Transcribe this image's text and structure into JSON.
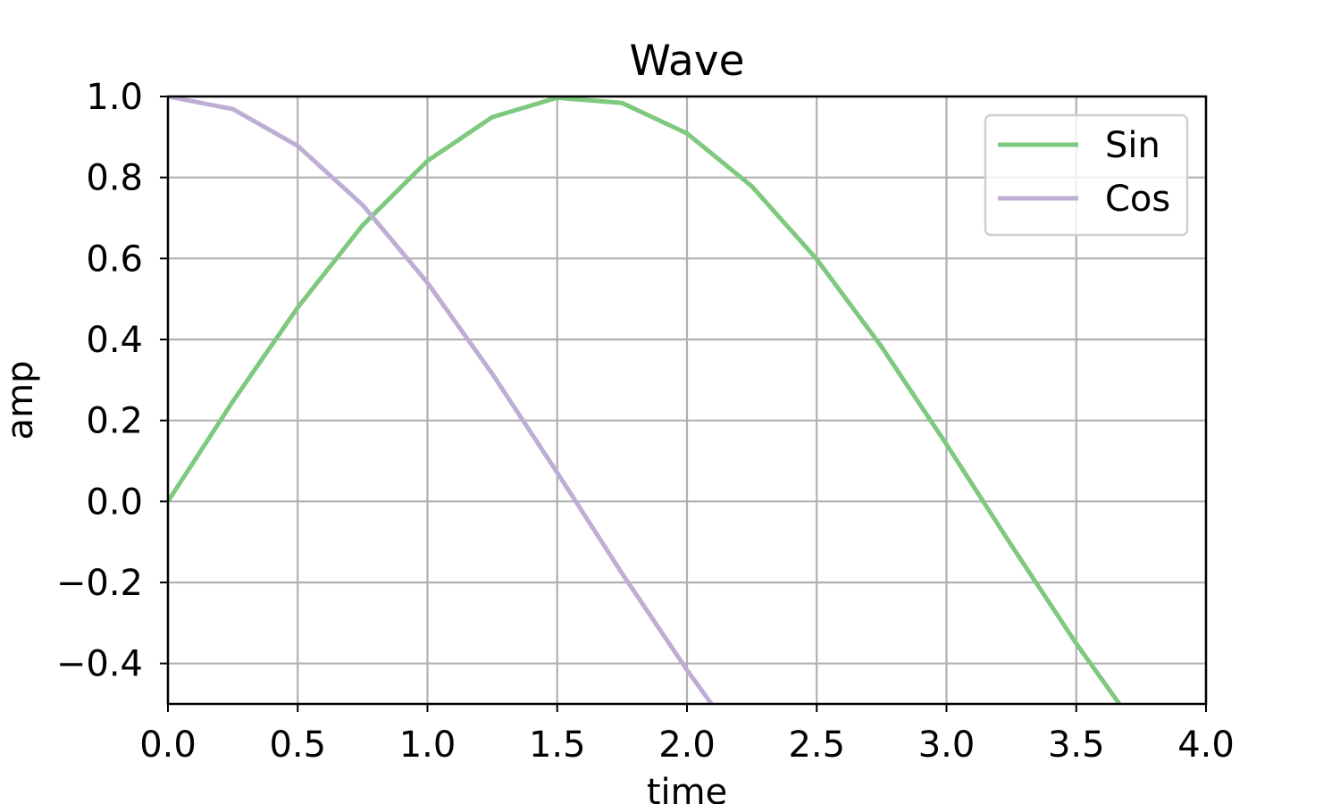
{
  "chart_data": {
    "type": "line",
    "title": "Wave",
    "xlabel": "time",
    "ylabel": "amp",
    "xlim": [
      0,
      4
    ],
    "ylim": [
      -0.5,
      1.0
    ],
    "xticks": [
      0,
      0.5,
      1.0,
      1.5,
      2.0,
      2.5,
      3.0,
      3.5,
      4.0
    ],
    "xtick_labels": [
      "0.0",
      "0.5",
      "1.0",
      "1.5",
      "2.0",
      "2.5",
      "3.0",
      "3.5",
      "4.0"
    ],
    "yticks": [
      -0.4,
      -0.2,
      0.0,
      0.2,
      0.4,
      0.6,
      0.8,
      1.0
    ],
    "ytick_labels": [
      "−0.4",
      "−0.2",
      "0.0",
      "0.2",
      "0.4",
      "0.6",
      "0.8",
      "1.0"
    ],
    "grid": true,
    "legend_position": "top-right",
    "series": [
      {
        "name": "Sin",
        "color": "#7fc97f",
        "x": [
          0,
          0.25,
          0.5,
          0.75,
          1.0,
          1.25,
          1.5,
          1.75,
          2.0,
          2.25,
          2.5,
          2.75,
          3.0,
          3.25,
          3.5,
          3.67
        ],
        "y": [
          0.0,
          0.247,
          0.479,
          0.682,
          0.841,
          0.949,
          0.997,
          0.984,
          0.909,
          0.778,
          0.598,
          0.382,
          0.141,
          -0.108,
          -0.351,
          -0.503
        ]
      },
      {
        "name": "Cos",
        "color": "#beaed4",
        "x": [
          0,
          0.25,
          0.5,
          0.75,
          1.0,
          1.25,
          1.5,
          1.75,
          2.0,
          2.1
        ],
        "y": [
          1.0,
          0.969,
          0.878,
          0.732,
          0.54,
          0.315,
          0.071,
          -0.178,
          -0.416,
          -0.505
        ]
      }
    ]
  }
}
